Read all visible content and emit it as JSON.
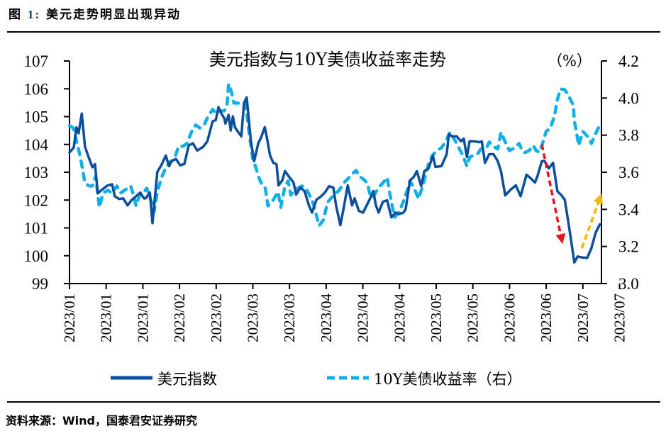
{
  "figure": {
    "label": "图",
    "number": "1:",
    "title": "美元走势明显出现异动"
  },
  "source": "资料来源：Wind，国泰君安证券研究",
  "chart_data": {
    "type": "line",
    "title": "美元指数与10Y美债收益率走势",
    "right_axis_unit": "（%）",
    "xlabel": "",
    "ylabel": "",
    "x_tick_labels": [
      "2023/01",
      "2023/01",
      "2023/01",
      "2023/02",
      "2023/02",
      "2023/03",
      "2023/03",
      "2023/04",
      "2023/04",
      "2023/04",
      "2023/05",
      "2023/05",
      "2023/06",
      "2023/06",
      "2023/07",
      "2023/07"
    ],
    "ylim_left": [
      99,
      107
    ],
    "yticks_left": [
      "99",
      "100",
      "101",
      "102",
      "103",
      "104",
      "105",
      "106",
      "107"
    ],
    "ylim_right": [
      3.0,
      4.2
    ],
    "yticks_right": [
      "3.0",
      "3.2",
      "3.4",
      "3.6",
      "3.8",
      "4.0",
      "4.2"
    ],
    "legend_position": "bottom",
    "grid": false,
    "series": [
      {
        "name": "美元指数",
        "axis": "left",
        "style": "solid",
        "color": "#0b4f9c",
        "points": [
          [
            0.0,
            103.71
          ],
          [
            0.008,
            103.89
          ],
          [
            0.013,
            104.61
          ],
          [
            0.017,
            104.4
          ],
          [
            0.023,
            105.11
          ],
          [
            0.029,
            103.92
          ],
          [
            0.036,
            103.54
          ],
          [
            0.043,
            103.18
          ],
          [
            0.048,
            103.29
          ],
          [
            0.053,
            102.24
          ],
          [
            0.061,
            102.37
          ],
          [
            0.071,
            102.52
          ],
          [
            0.08,
            102.57
          ],
          [
            0.085,
            102.14
          ],
          [
            0.093,
            102.04
          ],
          [
            0.101,
            102.06
          ],
          [
            0.109,
            101.81
          ],
          [
            0.117,
            102.01
          ],
          [
            0.125,
            102.14
          ],
          [
            0.133,
            102.27
          ],
          [
            0.14,
            102.06
          ],
          [
            0.143,
            102.06
          ],
          [
            0.151,
            102.27
          ],
          [
            0.156,
            101.17
          ],
          [
            0.165,
            103.01
          ],
          [
            0.173,
            103.27
          ],
          [
            0.181,
            103.6
          ],
          [
            0.187,
            103.22
          ],
          [
            0.192,
            103.4
          ],
          [
            0.2,
            103.48
          ],
          [
            0.208,
            103.25
          ],
          [
            0.216,
            103.3
          ],
          [
            0.224,
            103.96
          ],
          [
            0.232,
            104.04
          ],
          [
            0.24,
            103.78
          ],
          [
            0.251,
            103.91
          ],
          [
            0.259,
            104.11
          ],
          [
            0.269,
            104.83
          ],
          [
            0.275,
            104.88
          ],
          [
            0.28,
            105.34
          ],
          [
            0.285,
            105.13
          ],
          [
            0.291,
            104.93
          ],
          [
            0.293,
            104.75
          ],
          [
            0.299,
            105.06
          ],
          [
            0.303,
            104.5
          ],
          [
            0.307,
            105.01
          ],
          [
            0.311,
            104.62
          ],
          [
            0.315,
            104.5
          ],
          [
            0.323,
            104.29
          ],
          [
            0.328,
            105.49
          ],
          [
            0.333,
            105.69
          ],
          [
            0.341,
            104.11
          ],
          [
            0.347,
            103.4
          ],
          [
            0.355,
            104.06
          ],
          [
            0.36,
            104.24
          ],
          [
            0.367,
            104.62
          ],
          [
            0.371,
            104.24
          ],
          [
            0.377,
            103.6
          ],
          [
            0.383,
            103.34
          ],
          [
            0.389,
            103.29
          ],
          [
            0.393,
            102.53
          ],
          [
            0.4,
            102.71
          ],
          [
            0.405,
            103.04
          ],
          [
            0.413,
            102.83
          ],
          [
            0.421,
            102.63
          ],
          [
            0.426,
            102.2
          ],
          [
            0.434,
            102.45
          ],
          [
            0.442,
            102.32
          ],
          [
            0.45,
            101.81
          ],
          [
            0.456,
            101.55
          ],
          [
            0.464,
            102.01
          ],
          [
            0.472,
            102.12
          ],
          [
            0.48,
            102.27
          ],
          [
            0.488,
            102.5
          ],
          [
            0.496,
            102.45
          ],
          [
            0.501,
            101.81
          ],
          [
            0.509,
            101.1
          ],
          [
            0.515,
            101.68
          ],
          [
            0.523,
            102.53
          ],
          [
            0.531,
            101.81
          ],
          [
            0.536,
            102.06
          ],
          [
            0.544,
            101.61
          ],
          [
            0.552,
            101.55
          ],
          [
            0.56,
            101.86
          ],
          [
            0.565,
            102.06
          ],
          [
            0.571,
            102.32
          ],
          [
            0.576,
            101.81
          ],
          [
            0.581,
            101.55
          ],
          [
            0.589,
            101.94
          ],
          [
            0.597,
            101.99
          ],
          [
            0.605,
            101.38
          ],
          [
            0.613,
            101.55
          ],
          [
            0.62,
            101.5
          ],
          [
            0.628,
            101.55
          ],
          [
            0.632,
            101.68
          ],
          [
            0.64,
            102.71
          ],
          [
            0.647,
            102.83
          ],
          [
            0.653,
            103.04
          ],
          [
            0.661,
            102.5
          ],
          [
            0.667,
            103.04
          ],
          [
            0.675,
            103.14
          ],
          [
            0.683,
            103.6
          ],
          [
            0.688,
            103.19
          ],
          [
            0.699,
            103.22
          ],
          [
            0.709,
            103.65
          ],
          [
            0.713,
            104.36
          ],
          [
            0.72,
            104.29
          ],
          [
            0.728,
            104.29
          ],
          [
            0.736,
            104.11
          ],
          [
            0.741,
            104.21
          ],
          [
            0.747,
            103.55
          ],
          [
            0.752,
            104.11
          ],
          [
            0.761,
            104.11
          ],
          [
            0.771,
            104.08
          ],
          [
            0.775,
            104.11
          ],
          [
            0.781,
            103.34
          ],
          [
            0.789,
            103.65
          ],
          [
            0.797,
            103.65
          ],
          [
            0.805,
            103.4
          ],
          [
            0.811,
            103.04
          ],
          [
            0.819,
            102.17
          ],
          [
            0.829,
            102.37
          ],
          [
            0.839,
            102.53
          ],
          [
            0.848,
            102.14
          ],
          [
            0.859,
            102.91
          ],
          [
            0.867,
            102.78
          ],
          [
            0.875,
            102.63
          ],
          [
            0.88,
            102.88
          ],
          [
            0.888,
            103.4
          ],
          [
            0.893,
            103.4
          ],
          [
            0.901,
            103.14
          ],
          [
            0.909,
            103.34
          ],
          [
            0.917,
            102.32
          ],
          [
            0.925,
            102.17
          ],
          [
            0.931,
            102.01
          ],
          [
            0.939,
            101.04
          ],
          [
            0.949,
            99.76
          ],
          [
            0.955,
            99.97
          ],
          [
            0.963,
            99.94
          ],
          [
            0.973,
            99.92
          ],
          [
            0.981,
            100.27
          ],
          [
            0.989,
            100.83
          ],
          [
            0.997,
            101.13
          ]
        ]
      },
      {
        "name": "10Y美债收益率（右）",
        "axis": "right",
        "style": "dashed",
        "color": "#12aee8",
        "points": [
          [
            0.0,
            3.851
          ],
          [
            0.007,
            3.839
          ],
          [
            0.013,
            3.77
          ],
          [
            0.019,
            3.698
          ],
          [
            0.023,
            3.64
          ],
          [
            0.029,
            3.541
          ],
          [
            0.037,
            3.526
          ],
          [
            0.043,
            3.526
          ],
          [
            0.049,
            3.579
          ],
          [
            0.056,
            3.411
          ],
          [
            0.063,
            3.488
          ],
          [
            0.072,
            3.503
          ],
          [
            0.08,
            3.488
          ],
          [
            0.089,
            3.526
          ],
          [
            0.096,
            3.488
          ],
          [
            0.107,
            3.51
          ],
          [
            0.115,
            3.526
          ],
          [
            0.12,
            3.48
          ],
          [
            0.125,
            3.419
          ],
          [
            0.131,
            3.472
          ],
          [
            0.139,
            3.488
          ],
          [
            0.145,
            3.514
          ],
          [
            0.153,
            3.449
          ],
          [
            0.159,
            3.388
          ],
          [
            0.165,
            3.495
          ],
          [
            0.173,
            3.572
          ],
          [
            0.181,
            3.625
          ],
          [
            0.189,
            3.656
          ],
          [
            0.197,
            3.671
          ],
          [
            0.205,
            3.74
          ],
          [
            0.213,
            3.74
          ],
          [
            0.221,
            3.755
          ],
          [
            0.229,
            3.816
          ],
          [
            0.237,
            3.855
          ],
          [
            0.245,
            3.839
          ],
          [
            0.253,
            3.855
          ],
          [
            0.259,
            3.893
          ],
          [
            0.269,
            3.939
          ],
          [
            0.276,
            3.916
          ],
          [
            0.283,
            3.931
          ],
          [
            0.291,
            3.931
          ],
          [
            0.296,
            3.962
          ],
          [
            0.299,
            4.076
          ],
          [
            0.304,
            4.038
          ],
          [
            0.309,
            3.973
          ],
          [
            0.317,
            3.973
          ],
          [
            0.325,
            3.962
          ],
          [
            0.331,
            3.969
          ],
          [
            0.336,
            3.847
          ],
          [
            0.344,
            3.679
          ],
          [
            0.352,
            3.61
          ],
          [
            0.357,
            3.564
          ],
          [
            0.363,
            3.526
          ],
          [
            0.368,
            3.514
          ],
          [
            0.373,
            3.419
          ],
          [
            0.381,
            3.442
          ],
          [
            0.392,
            3.495
          ],
          [
            0.397,
            3.411
          ],
          [
            0.405,
            3.526
          ],
          [
            0.411,
            3.553
          ],
          [
            0.416,
            3.477
          ],
          [
            0.421,
            3.495
          ],
          [
            0.429,
            3.514
          ],
          [
            0.437,
            3.526
          ],
          [
            0.445,
            3.511
          ],
          [
            0.456,
            3.449
          ],
          [
            0.461,
            3.404
          ],
          [
            0.469,
            3.312
          ],
          [
            0.477,
            3.342
          ],
          [
            0.485,
            3.438
          ],
          [
            0.493,
            3.465
          ],
          [
            0.501,
            3.488
          ],
          [
            0.507,
            3.503
          ],
          [
            0.515,
            3.541
          ],
          [
            0.523,
            3.564
          ],
          [
            0.531,
            3.591
          ],
          [
            0.539,
            3.61
          ],
          [
            0.544,
            3.579
          ],
          [
            0.552,
            3.564
          ],
          [
            0.56,
            3.541
          ],
          [
            0.565,
            3.476
          ],
          [
            0.571,
            3.465
          ],
          [
            0.576,
            3.495
          ],
          [
            0.584,
            3.526
          ],
          [
            0.592,
            3.553
          ],
          [
            0.597,
            3.572
          ],
          [
            0.605,
            3.438
          ],
          [
            0.611,
            3.358
          ],
          [
            0.619,
            3.381
          ],
          [
            0.627,
            3.438
          ],
          [
            0.632,
            3.476
          ],
          [
            0.64,
            3.553
          ],
          [
            0.648,
            3.514
          ],
          [
            0.656,
            3.457
          ],
          [
            0.664,
            3.526
          ],
          [
            0.675,
            3.648
          ],
          [
            0.683,
            3.694
          ],
          [
            0.691,
            3.717
          ],
          [
            0.699,
            3.732
          ],
          [
            0.707,
            3.763
          ],
          [
            0.715,
            3.816
          ],
          [
            0.72,
            3.793
          ],
          [
            0.725,
            3.77
          ],
          [
            0.733,
            3.725
          ],
          [
            0.739,
            3.694
          ],
          [
            0.747,
            3.633
          ],
          [
            0.752,
            3.679
          ],
          [
            0.76,
            3.694
          ],
          [
            0.768,
            3.702
          ],
          [
            0.773,
            3.725
          ],
          [
            0.784,
            3.732
          ],
          [
            0.789,
            3.763
          ],
          [
            0.797,
            3.74
          ],
          [
            0.805,
            3.725
          ],
          [
            0.811,
            3.816
          ],
          [
            0.819,
            3.763
          ],
          [
            0.827,
            3.717
          ],
          [
            0.837,
            3.732
          ],
          [
            0.845,
            3.755
          ],
          [
            0.851,
            3.717
          ],
          [
            0.856,
            3.706
          ],
          [
            0.864,
            3.717
          ],
          [
            0.872,
            3.744
          ],
          [
            0.877,
            3.717
          ],
          [
            0.883,
            3.709
          ],
          [
            0.888,
            3.744
          ],
          [
            0.896,
            3.82
          ],
          [
            0.904,
            3.839
          ],
          [
            0.912,
            3.908
          ],
          [
            0.917,
            3.992
          ],
          [
            0.923,
            4.049
          ],
          [
            0.931,
            4.045
          ],
          [
            0.939,
            4.007
          ],
          [
            0.947,
            3.962
          ],
          [
            0.949,
            3.878
          ],
          [
            0.955,
            3.782
          ],
          [
            0.957,
            3.744
          ],
          [
            0.965,
            3.82
          ],
          [
            0.976,
            3.786
          ],
          [
            0.981,
            3.755
          ],
          [
            0.989,
            3.809
          ],
          [
            0.997,
            3.855
          ]
        ]
      }
    ],
    "annotations": [
      {
        "type": "arrow",
        "color": "#e8141b",
        "style": "dashed",
        "from": [
          0.888,
          104.0
        ],
        "to": [
          0.925,
          100.6
        ],
        "axis": "left"
      },
      {
        "type": "arrow",
        "color": "#f5b400",
        "style": "dashed",
        "from": [
          0.963,
          3.19
        ],
        "to": [
          0.997,
          3.46
        ],
        "axis": "right"
      }
    ]
  }
}
